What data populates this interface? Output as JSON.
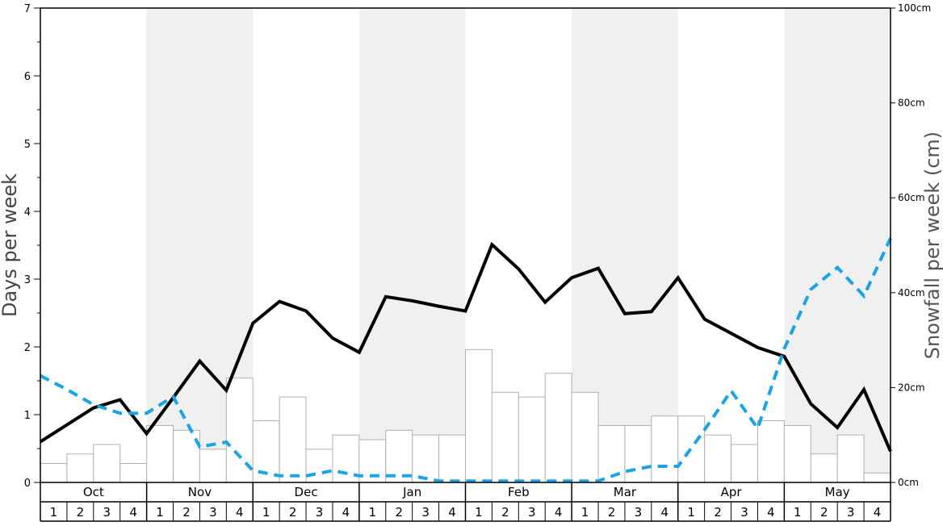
{
  "chart_data": {
    "type": "bar",
    "title": "",
    "ylabel": "Days per week",
    "y2label": "Snowfall per week (cm)",
    "ylim": [
      0,
      7
    ],
    "y2lim": [
      0,
      100
    ],
    "yticks": [
      "0",
      "1",
      "2",
      "3",
      "4",
      "5",
      "6",
      "7"
    ],
    "y2ticks": [
      "0cm",
      "20cm",
      "40cm",
      "60cm",
      "80cm",
      "100cm"
    ],
    "months": [
      "Oct",
      "Nov",
      "Dec",
      "Jan",
      "Feb",
      "Mar",
      "Apr",
      "May"
    ],
    "weeks": [
      "1",
      "2",
      "3",
      "4"
    ],
    "grid": false,
    "legend": "none",
    "colors": {
      "bar_fill": "#ffffff",
      "bar_stroke": "#b0b0b0",
      "band_shade": "#f0f0f0",
      "days_line": "#000000",
      "snow_line": "#1aa3e8",
      "axis": "#000000",
      "right_label": "#555555"
    },
    "series": [
      {
        "kind": "bar",
        "axis": "left",
        "values": [
          0.28,
          0.42,
          0.56,
          0.28,
          0.84,
          0.77,
          0.49,
          1.54,
          0.91,
          1.26,
          0.49,
          0.7,
          0.63,
          0.77,
          0.7,
          0.7,
          1.96,
          1.33,
          1.26,
          1.61,
          1.33,
          0.84,
          0.84,
          0.98,
          0.98,
          0.7,
          0.56,
          0.91,
          0.84,
          0.42,
          0.7,
          0.14
        ]
      },
      {
        "kind": "line",
        "axis": "left",
        "values": [
          0.6,
          0.85,
          1.1,
          1.22,
          0.72,
          1.25,
          1.79,
          1.36,
          2.35,
          2.67,
          2.53,
          2.13,
          1.92,
          2.74,
          2.68,
          2.6,
          2.53,
          3.51,
          3.15,
          2.66,
          3.02,
          3.16,
          2.49,
          2.52,
          3.02,
          2.41,
          2.2,
          1.99,
          1.86,
          1.16,
          0.81,
          1.37,
          0.46
        ]
      },
      {
        "kind": "line",
        "axis": "right",
        "dashed": true,
        "values": [
          22.5,
          19.6,
          16.4,
          14.6,
          14.6,
          18.1,
          7.5,
          8.5,
          2.5,
          1.4,
          1.4,
          2.5,
          1.4,
          1.4,
          1.4,
          0.3,
          0.3,
          0.3,
          0.3,
          0.3,
          0.3,
          0.3,
          2.3,
          3.4,
          3.4,
          11.1,
          19.3,
          11.4,
          28.2,
          40.7,
          45.3,
          39.3,
          51.5
        ]
      }
    ]
  }
}
